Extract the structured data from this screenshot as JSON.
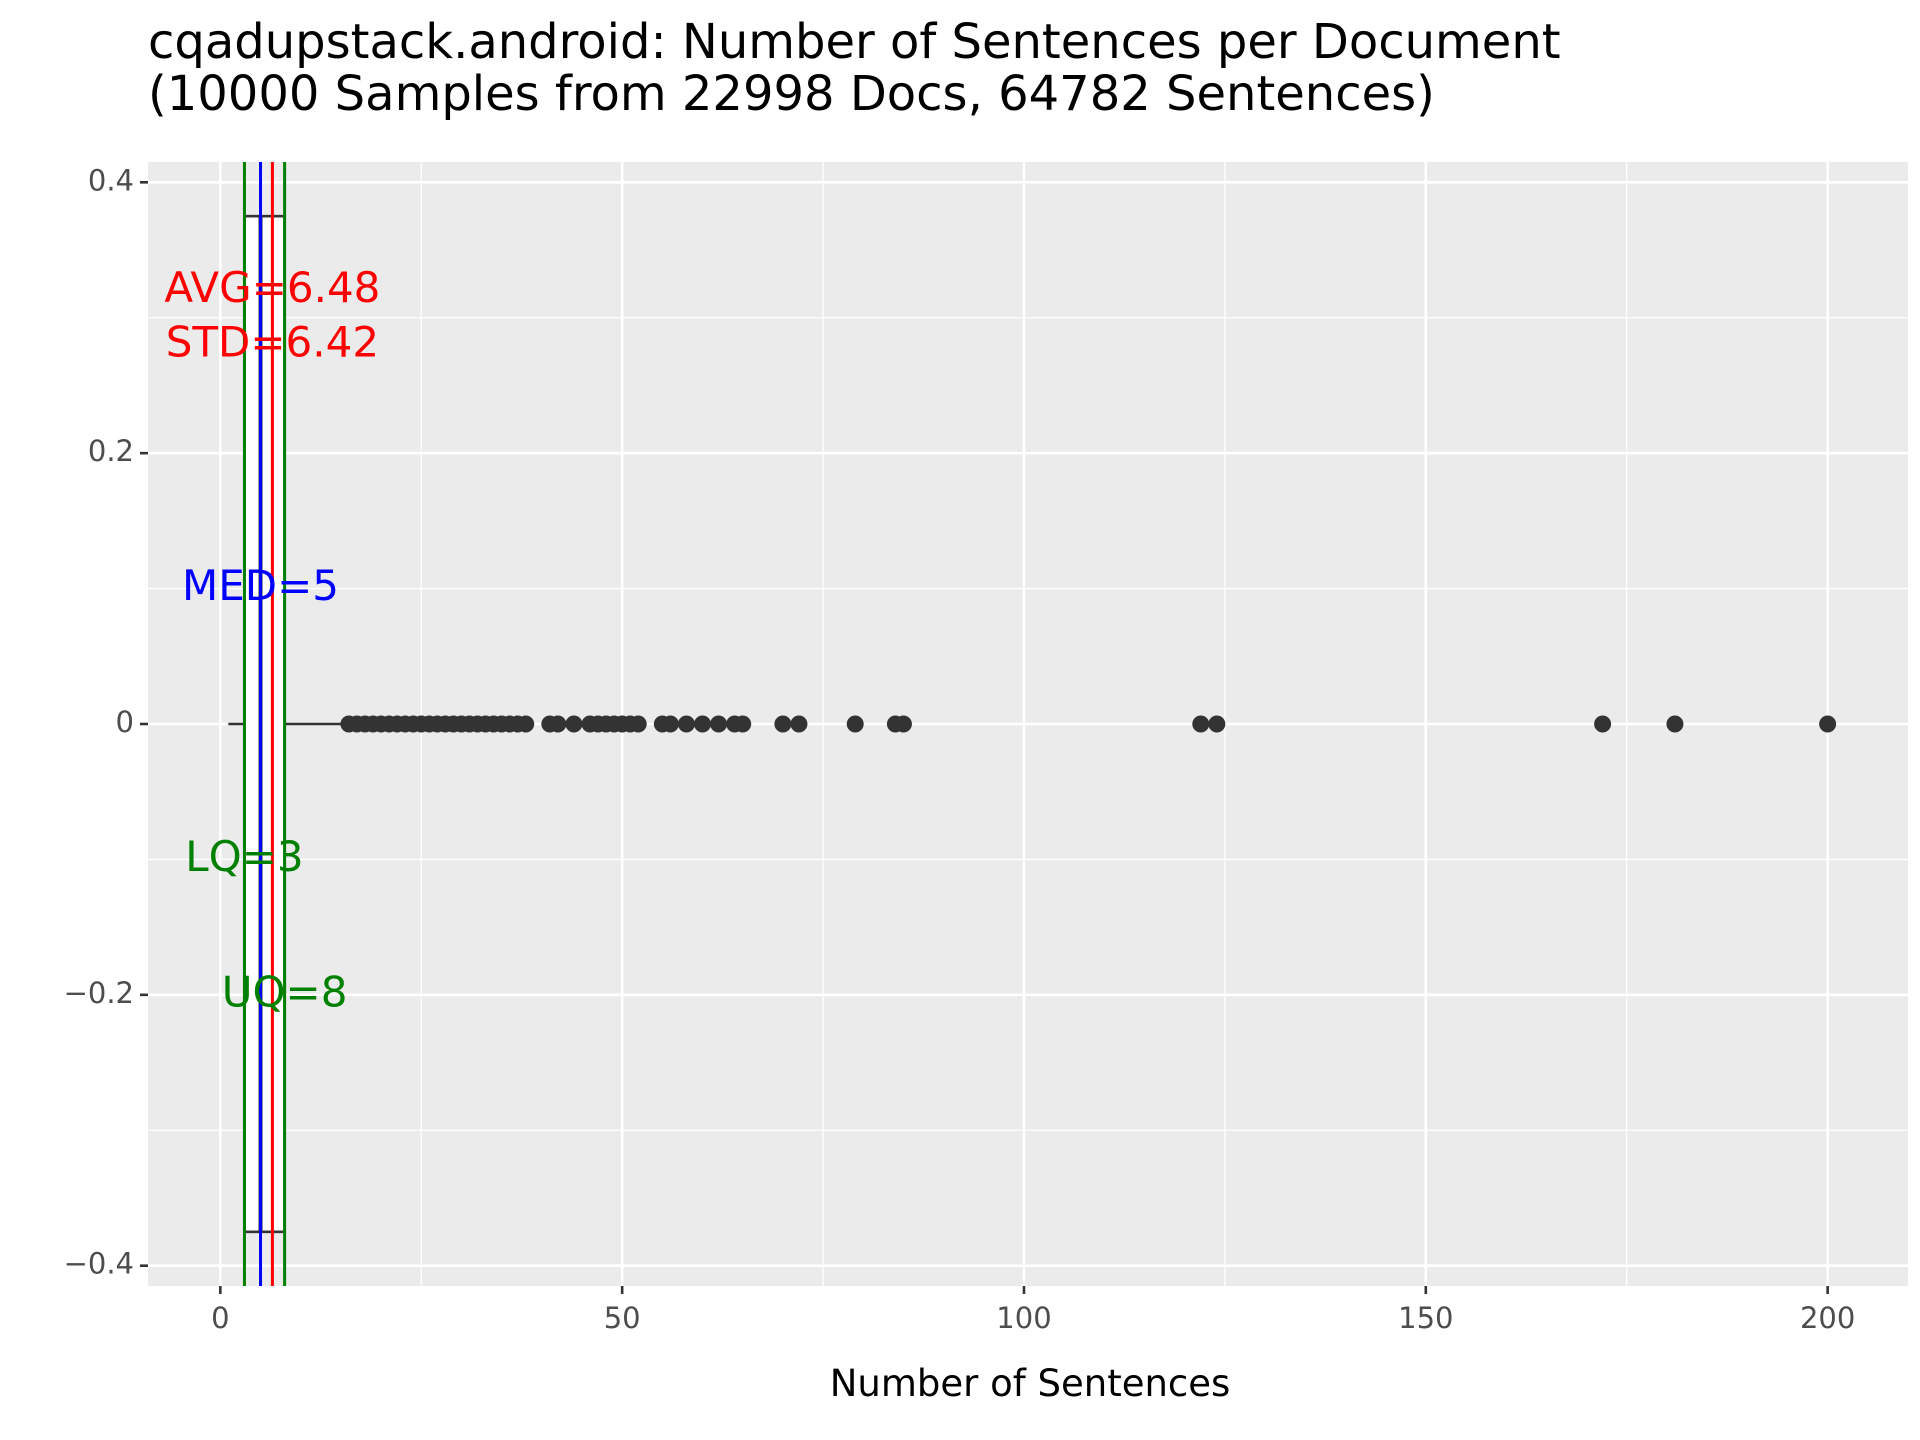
{
  "chart_data": {
    "type": "boxplot",
    "title": "cqadupstack.android: Number of Sentences per Document",
    "subtitle": "(10000 Samples from 22998 Docs, 64782 Sentences)",
    "xlabel": "Number of Sentences",
    "ylabel": "",
    "xlim": [
      -9,
      210
    ],
    "ylim": [
      -0.415,
      0.415
    ],
    "x_ticks": [
      0,
      50,
      100,
      150,
      200
    ],
    "x_tick_labels": [
      "0",
      "50",
      "100",
      "150",
      "200"
    ],
    "y_ticks": [
      0.4,
      0.2,
      0,
      -0.2,
      -0.4
    ],
    "y_tick_labels": [
      "0.4",
      "0.2",
      "0",
      "−0.2",
      "−0.4"
    ],
    "grid": true,
    "background": "#ebebeb",
    "box": {
      "min": 1,
      "q1": 3,
      "median": 5,
      "q3": 8,
      "whisker_high": 15,
      "y": 0,
      "half_height": 0.375
    },
    "outliers": [
      16,
      17,
      18,
      19,
      20,
      21,
      22,
      23,
      24,
      25,
      26,
      27,
      28,
      29,
      30,
      31,
      32,
      33,
      34,
      35,
      36,
      37,
      38,
      41,
      42,
      44,
      46,
      47,
      48,
      49,
      50,
      51,
      52,
      55,
      56,
      58,
      60,
      62,
      64,
      65,
      70,
      72,
      79,
      84,
      85,
      122,
      124,
      172,
      181,
      200
    ],
    "reference_lines": [
      {
        "name": "AVG",
        "value": 6.48,
        "color": "#ff0000"
      },
      {
        "name": "MED",
        "value": 5,
        "color": "#0000ff"
      },
      {
        "name": "LQ",
        "value": 3,
        "color": "#008000"
      },
      {
        "name": "UQ",
        "value": 8,
        "color": "#008000"
      }
    ],
    "annotations": [
      {
        "text": "AVG=6.48",
        "x": 6.48,
        "y": 0.32,
        "color": "#ff0000"
      },
      {
        "text": "STD=6.42",
        "x": 6.48,
        "y": 0.28,
        "color": "#ff0000"
      },
      {
        "text": "MED=5",
        "x": 5,
        "y": 0.1,
        "color": "#0000ff"
      },
      {
        "text": "LQ=3",
        "x": 3,
        "y": -0.1,
        "color": "#008000"
      },
      {
        "text": "UQ=8",
        "x": 8,
        "y": -0.2,
        "color": "#008000"
      }
    ],
    "colors": {
      "points": "#333333",
      "box": "#333333",
      "grid": "#ffffff"
    }
  }
}
